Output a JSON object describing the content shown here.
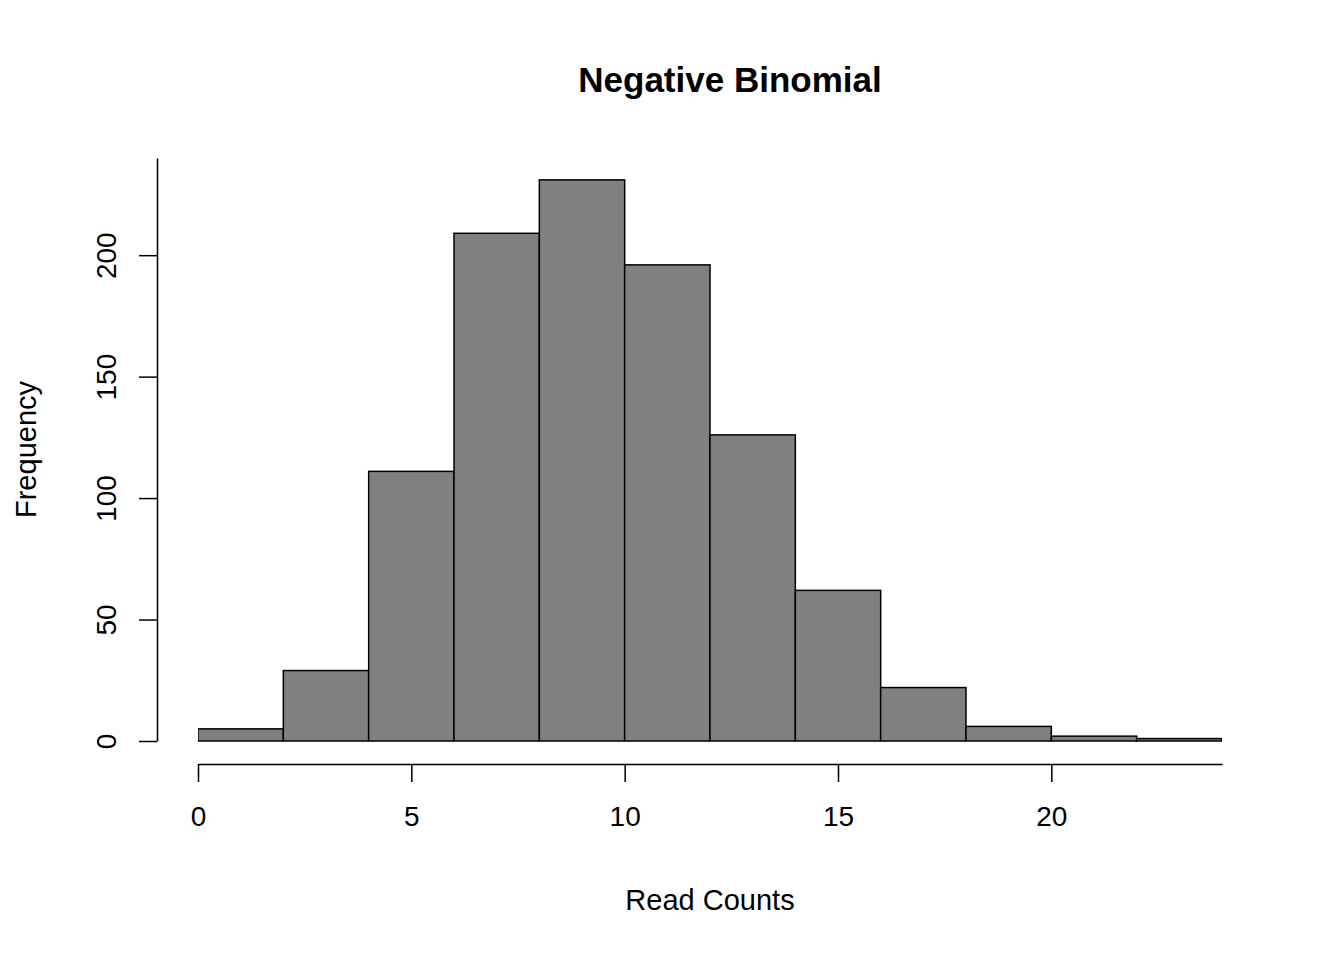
{
  "chart_data": {
    "type": "histogram",
    "title": "Negative Binomial",
    "x_label": "Read Counts",
    "y_label": "Frequency",
    "bins": [
      0,
      2,
      4,
      6,
      8,
      10,
      12,
      14,
      16,
      18,
      20,
      22,
      24
    ],
    "values": [
      5,
      29,
      111,
      209,
      231,
      196,
      126,
      62,
      22,
      6,
      2,
      1
    ],
    "color": "#808080",
    "xlim": [
      0,
      24
    ],
    "ylim": [
      0,
      240
    ],
    "xticks": [
      0,
      5,
      10,
      15,
      20
    ],
    "yticks": [
      0,
      50,
      100,
      150,
      200
    ],
    "grid": false
  }
}
